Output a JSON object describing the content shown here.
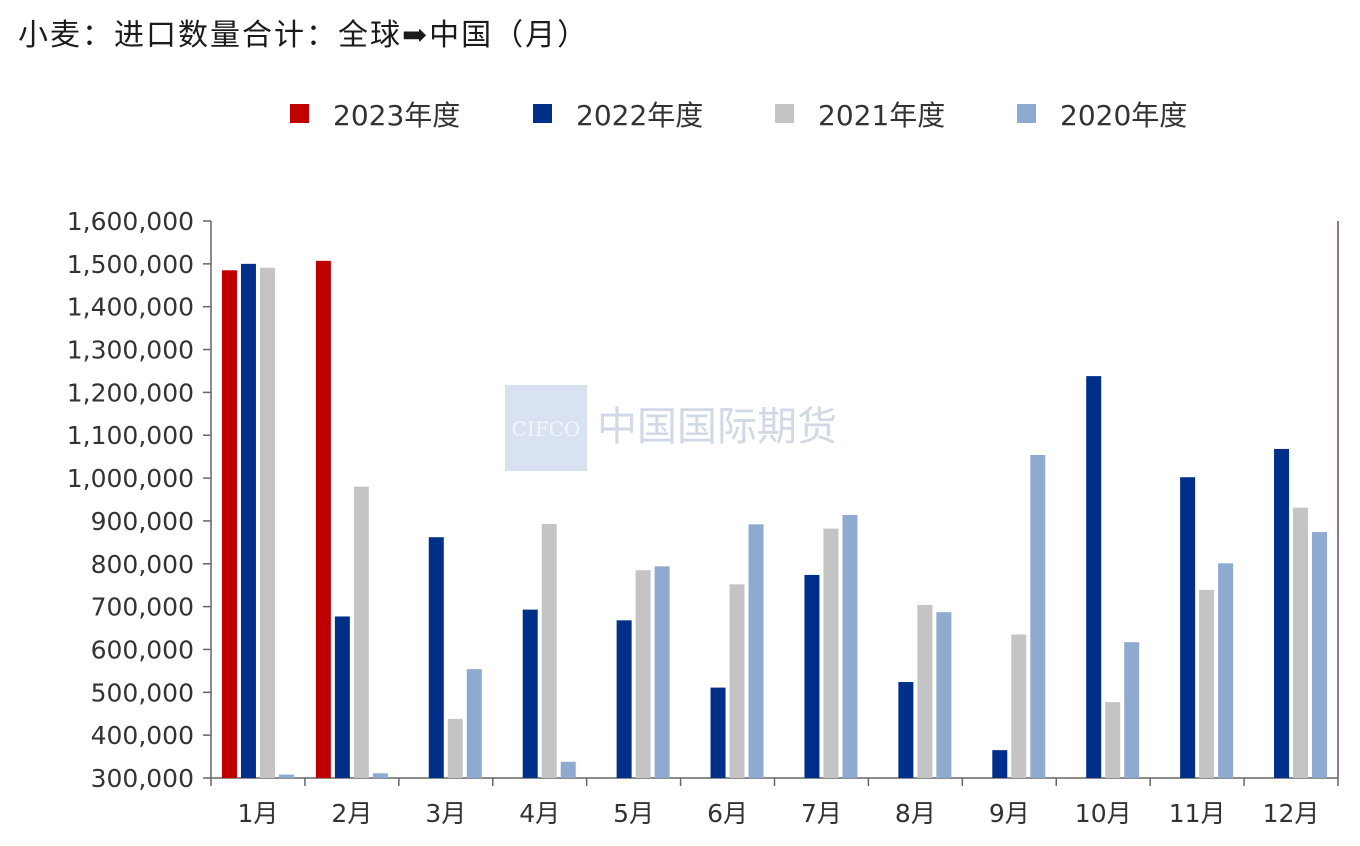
{
  "chart_data": {
    "type": "bar",
    "title": "小麦：进口数量合计：全球➡中国（月）",
    "categories": [
      "1月",
      "2月",
      "3月",
      "4月",
      "5月",
      "6月",
      "7月",
      "8月",
      "9月",
      "10月",
      "11月",
      "12月"
    ],
    "series": [
      {
        "name": "2023年度",
        "color": "#c00000",
        "values": [
          1485000,
          1507000,
          null,
          null,
          null,
          null,
          null,
          null,
          null,
          null,
          null,
          null
        ]
      },
      {
        "name": "2022年度",
        "color": "#002f8a",
        "values": [
          1500000,
          677000,
          862000,
          693000,
          668000,
          511000,
          774000,
          524000,
          365000,
          1238000,
          1002000,
          1068000
        ]
      },
      {
        "name": "2021年度",
        "color": "#c4c4c4",
        "values": [
          1491000,
          980000,
          438000,
          893000,
          785000,
          752000,
          882000,
          704000,
          635000,
          477000,
          739000,
          931000
        ]
      },
      {
        "name": "2020年度",
        "color": "#8faad0",
        "values": [
          308000,
          311000,
          554000,
          338000,
          794000,
          892000,
          914000,
          687000,
          1054000,
          617000,
          801000,
          874000
        ]
      }
    ],
    "ylim": [
      300000,
      1600000
    ],
    "yticks": [
      "300,000",
      "400,000",
      "500,000",
      "600,000",
      "700,000",
      "800,000",
      "900,000",
      "1,000,000",
      "1,100,000",
      "1,200,000",
      "1,300,000",
      "1,400,000",
      "1,500,000",
      "1,600,000"
    ],
    "legend_position": "top",
    "grid": false
  },
  "watermark": {
    "logo_text": "CIFCO",
    "name": "中国国际期货"
  }
}
